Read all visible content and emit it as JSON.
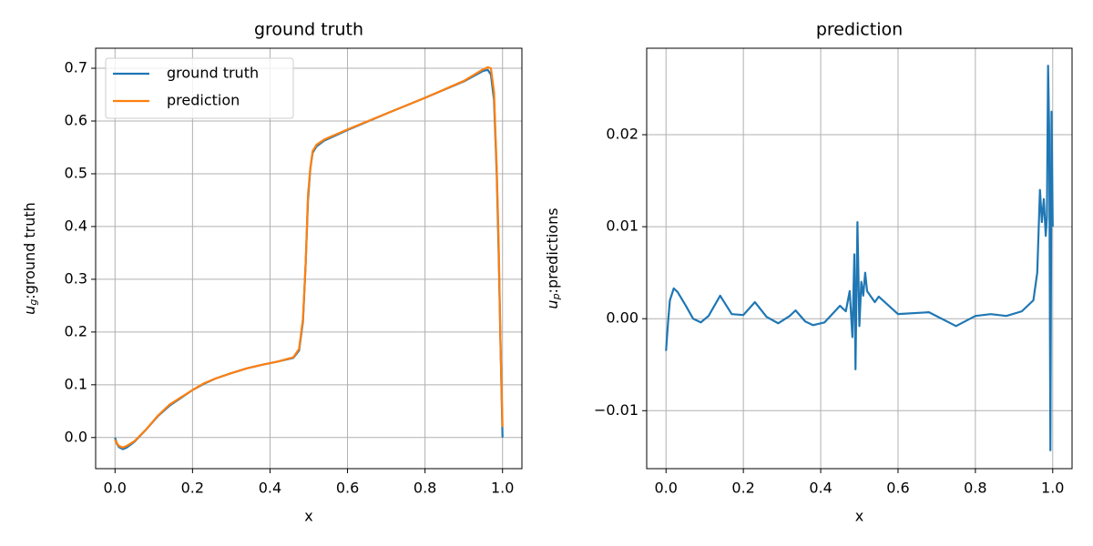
{
  "chart_data": [
    {
      "type": "line",
      "title": "ground truth",
      "xlabel": "x",
      "ylabel": {
        "symbol": "u",
        "subscript": "g",
        "text": ":ground truth"
      },
      "x": [
        0,
        0.005,
        0.01,
        0.02,
        0.03,
        0.05,
        0.08,
        0.11,
        0.14,
        0.17,
        0.2,
        0.23,
        0.26,
        0.3,
        0.34,
        0.38,
        0.42,
        0.46,
        0.475,
        0.485,
        0.492,
        0.498,
        0.504,
        0.51,
        0.52,
        0.54,
        0.6,
        0.7,
        0.8,
        0.9,
        0.95,
        0.962,
        0.97,
        0.978,
        0.985,
        0.99,
        0.995,
        1.0
      ],
      "series": [
        {
          "name": "ground truth",
          "color": "#1f77b4",
          "values": [
            0,
            -0.012,
            -0.018,
            -0.022,
            -0.019,
            -0.008,
            0.015,
            0.04,
            0.06,
            0.075,
            0.09,
            0.102,
            0.112,
            0.122,
            0.131,
            0.138,
            0.144,
            0.151,
            0.165,
            0.22,
            0.33,
            0.45,
            0.51,
            0.54,
            0.552,
            0.563,
            0.583,
            0.614,
            0.644,
            0.675,
            0.695,
            0.697,
            0.688,
            0.64,
            0.5,
            0.35,
            0.17,
            0.0
          ]
        },
        {
          "name": "prediction",
          "color": "#ff7f0e",
          "values": [
            -0.004,
            -0.011,
            -0.016,
            -0.019,
            -0.016,
            -0.007,
            0.015,
            0.041,
            0.062,
            0.076,
            0.09,
            0.103,
            0.112,
            0.122,
            0.131,
            0.138,
            0.144,
            0.152,
            0.168,
            0.225,
            0.33,
            0.46,
            0.51,
            0.543,
            0.555,
            0.565,
            0.584,
            0.614,
            0.644,
            0.676,
            0.698,
            0.702,
            0.7,
            0.655,
            0.51,
            0.37,
            0.17,
            0.02
          ]
        }
      ],
      "xlim": [
        -0.05,
        1.05
      ],
      "ylim": [
        -0.059,
        0.738
      ],
      "xticks": [
        {
          "value": 0,
          "label": "0.0"
        },
        0.2,
        0.4,
        0.6,
        0.8,
        {
          "value": 1,
          "label": "1.0"
        }
      ],
      "yticks": [
        {
          "value": 0,
          "label": "0.0"
        },
        0.1,
        0.2,
        0.3,
        0.4,
        0.5,
        0.6,
        0.7
      ],
      "grid": true,
      "legend": "upper-left"
    },
    {
      "type": "line",
      "title": "prediction",
      "xlabel": "x",
      "ylabel": {
        "symbol": "u",
        "subscript": "p",
        "text": ":predictions"
      },
      "x": [
        0,
        0.005,
        0.01,
        0.02,
        0.03,
        0.05,
        0.07,
        0.09,
        0.11,
        0.14,
        0.17,
        0.2,
        0.23,
        0.26,
        0.29,
        0.32,
        0.335,
        0.36,
        0.38,
        0.41,
        0.45,
        0.465,
        0.475,
        0.482,
        0.487,
        0.49,
        0.495,
        0.5,
        0.505,
        0.51,
        0.515,
        0.52,
        0.53,
        0.54,
        0.55,
        0.6,
        0.68,
        0.75,
        0.8,
        0.84,
        0.88,
        0.92,
        0.95,
        0.96,
        0.967,
        0.972,
        0.977,
        0.982,
        0.985,
        0.988,
        0.991,
        0.994,
        0.997,
        1.0
      ],
      "series": [
        {
          "name": "prediction",
          "color": "#1f77b4",
          "values": [
            -0.0035,
            -0.0005,
            0.002,
            0.0033,
            0.0029,
            0.0015,
            0.0,
            -0.0004,
            0.0003,
            0.0025,
            0.0005,
            0.0004,
            0.0018,
            0.0002,
            -0.0005,
            0.0003,
            0.0009,
            -0.0003,
            -0.0007,
            -0.0004,
            0.0014,
            0.0008,
            0.003,
            -0.002,
            0.007,
            -0.0055,
            0.0105,
            -0.0008,
            0.004,
            0.0025,
            0.005,
            0.003,
            0.0024,
            0.0018,
            0.0024,
            0.0005,
            0.0007,
            -0.0008,
            0.0003,
            0.0005,
            0.0003,
            0.0008,
            0.002,
            0.005,
            0.014,
            0.0105,
            0.013,
            0.009,
            0.011,
            0.0275,
            0.02,
            -0.0143,
            0.0225,
            0.01
          ]
        }
      ],
      "xlim": [
        -0.05,
        1.05
      ],
      "ylim": [
        -0.0163,
        0.0294
      ],
      "xticks": [
        {
          "value": 0,
          "label": "0.0"
        },
        0.2,
        0.4,
        0.6,
        0.8,
        {
          "value": 1,
          "label": "1.0"
        }
      ],
      "yticks": [
        {
          "value": -0.01,
          "label": "−0.01"
        },
        {
          "value": 0,
          "label": "0.00"
        },
        0.01,
        0.02
      ],
      "grid": true
    }
  ]
}
